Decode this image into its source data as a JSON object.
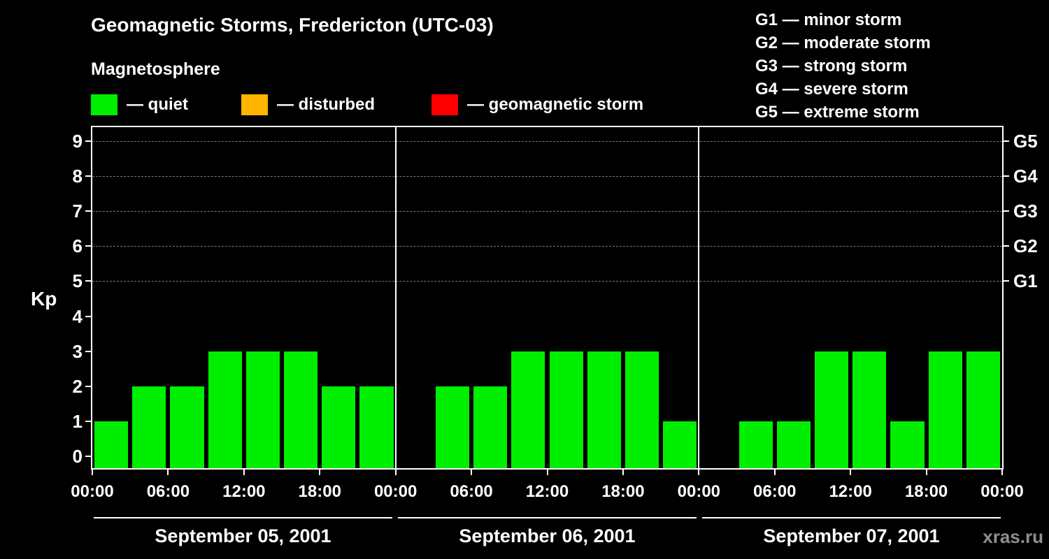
{
  "header": {
    "title": "Geomagnetic Storms, Fredericton (UTC-03)",
    "subtitle": "Magnetosphere",
    "legend": [
      {
        "label": "— quiet",
        "color": "#00ee00"
      },
      {
        "label": "— disturbed",
        "color": "#ffb400"
      },
      {
        "label": "— geomagnetic storm",
        "color": "#ff0000"
      }
    ],
    "g_scale": [
      "G1 — minor storm",
      "G2 — moderate storm",
      "G3 — strong storm",
      "G4 — severe storm",
      "G5 — extreme storm"
    ]
  },
  "footer": {
    "watermark": "xras.ru"
  },
  "chart_data": {
    "type": "bar",
    "title": "Geomagnetic Storms, Fredericton (UTC-03)",
    "xlabel": "",
    "ylabel": "Kp",
    "ylim": [
      0,
      9
    ],
    "yticks": [
      0,
      1,
      2,
      3,
      4,
      5,
      6,
      7,
      8,
      9
    ],
    "grid": "dashed horizontal at G levels",
    "grid_levels": [
      5,
      6,
      7,
      8,
      9
    ],
    "right_labels": [
      {
        "kp": 9,
        "label": "G5"
      },
      {
        "kp": 8,
        "label": "G4"
      },
      {
        "kp": 7,
        "label": "G3"
      },
      {
        "kp": 6,
        "label": "G2"
      },
      {
        "kp": 5,
        "label": "G1"
      }
    ],
    "x_tick_labels": [
      "00:00",
      "06:00",
      "12:00",
      "18:00"
    ],
    "bars_per_day": 8,
    "bar_interval_hours": 3,
    "days": [
      {
        "date": "September 05, 2001",
        "values": [
          1,
          2,
          2,
          3,
          3,
          3,
          2,
          2
        ]
      },
      {
        "date": "September 06, 2001",
        "values": [
          0,
          2,
          2,
          3,
          3,
          3,
          3,
          1
        ]
      },
      {
        "date": "September 07, 2001",
        "values": [
          0,
          1,
          1,
          3,
          3,
          1,
          3,
          3
        ]
      }
    ],
    "colors": {
      "quiet": "#00ee00",
      "disturbed": "#ffb400",
      "storm": "#ff0000"
    },
    "thresholds": {
      "disturbed_min": 4,
      "storm_min": 5
    }
  }
}
